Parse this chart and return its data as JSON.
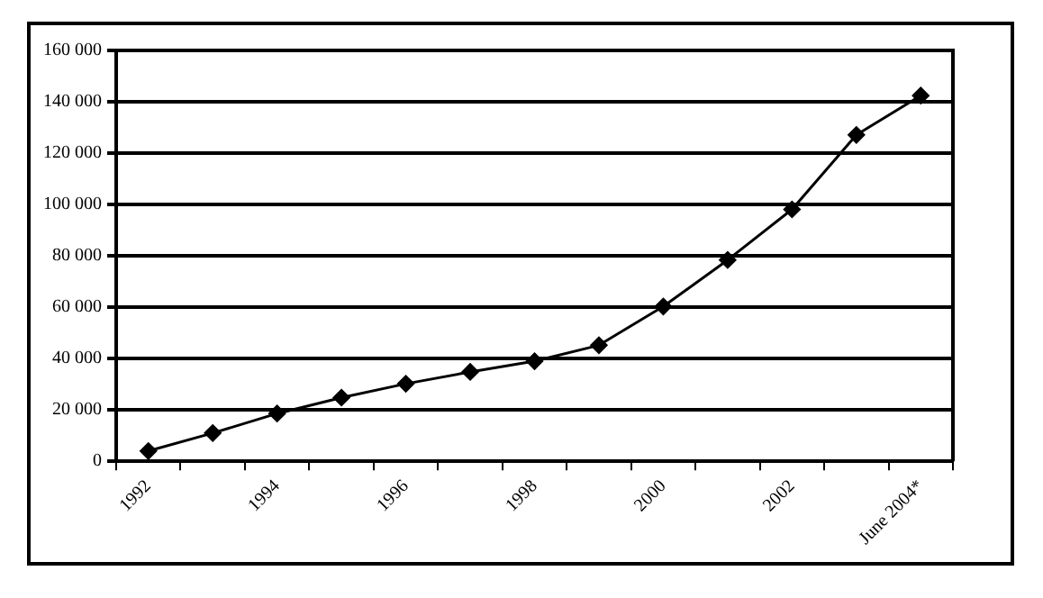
{
  "chart_data": {
    "type": "line",
    "categories": [
      "1992",
      null,
      "1994",
      null,
      "1996",
      null,
      "1998",
      null,
      "2000",
      null,
      "2002",
      null,
      "June 2004*"
    ],
    "series": [
      {
        "color": "#000000",
        "values": [
          4000,
          11000,
          18600,
          24800,
          30200,
          34800,
          39000,
          45200,
          60300,
          78400,
          98100,
          127100,
          142400
        ]
      }
    ],
    "ylim": [
      0,
      160000
    ],
    "yticks": [
      {
        "value": 0,
        "label": "0"
      },
      {
        "value": 20000,
        "label": "20 000"
      },
      {
        "value": 40000,
        "label": "40 000"
      },
      {
        "value": 60000,
        "label": "60 000"
      },
      {
        "value": 80000,
        "label": "80 000"
      },
      {
        "value": 100000,
        "label": "100 000"
      },
      {
        "value": 120000,
        "label": "120 000"
      },
      {
        "value": 140000,
        "label": "140 000"
      },
      {
        "value": 160000,
        "label": "160 000"
      }
    ],
    "grid": "y",
    "legend": false,
    "marker": "diamond",
    "line_style": "solid"
  }
}
